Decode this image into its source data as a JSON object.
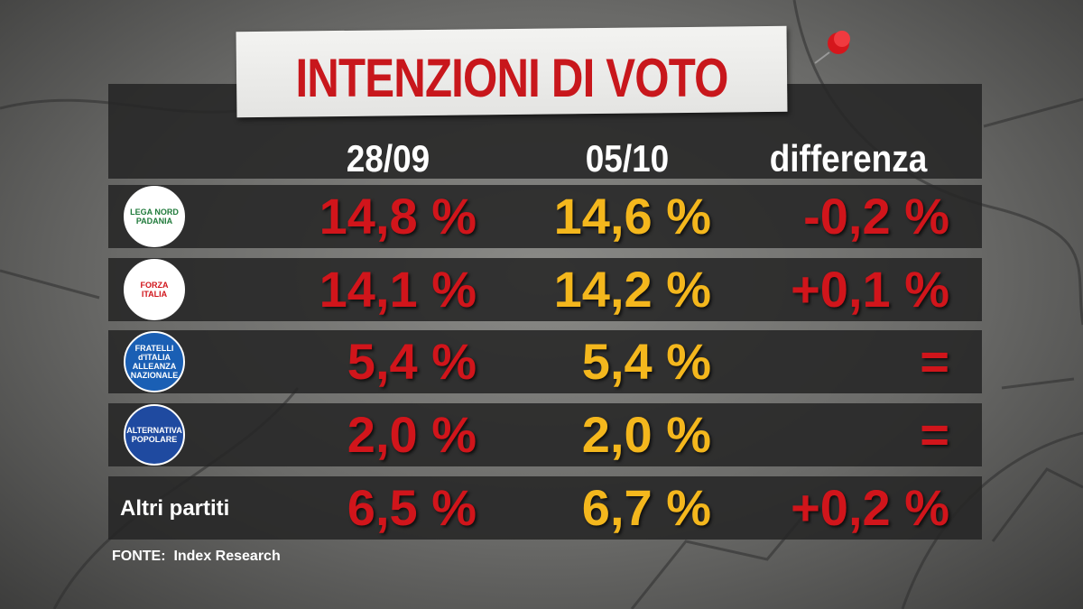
{
  "title": "INTENZIONI DI VOTO",
  "table": {
    "columns": [
      "28/09",
      "05/10",
      "differenza"
    ],
    "rows": [
      {
        "logo": [
          "LEGA NORD",
          "PADANIA"
        ],
        "cells": [
          "14,8 %",
          "14,6 %",
          "-0,2 %"
        ]
      },
      {
        "logo": [
          "FORZA",
          "ITALIA"
        ],
        "cells": [
          "14,1 %",
          "14,2 %",
          "+0,1 %"
        ]
      },
      {
        "logo": [
          "FRATELLI",
          "d'ITALIA",
          "ALLEANZA NAZIONALE"
        ],
        "cells": [
          "5,4 %",
          "5,4 %",
          "="
        ]
      },
      {
        "logo": [
          "ALTERNATIVA",
          "POPOLARE"
        ],
        "cells": [
          "2,0 %",
          "2,0 %",
          "="
        ]
      },
      {
        "label": "Altri partiti",
        "cells": [
          "6,5 %",
          "6,7 %",
          "+0,2 %"
        ]
      }
    ]
  },
  "source": {
    "label": "FONTE:",
    "name": "Index Research"
  }
}
